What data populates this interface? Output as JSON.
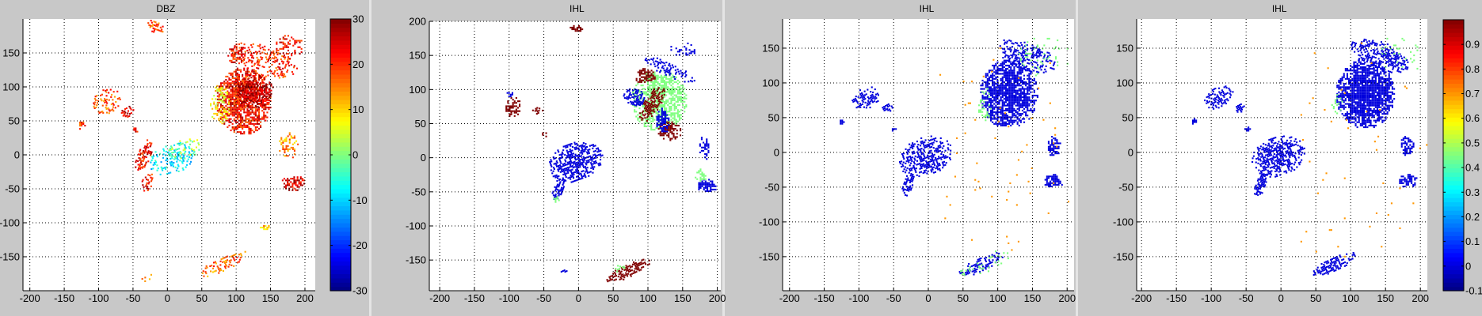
{
  "chart_data": [
    {
      "type": "heatmap",
      "title": "DBZ",
      "xlim": [
        -210,
        215
      ],
      "ylim": [
        -200,
        200
      ],
      "xticks": [
        -200,
        -150,
        -100,
        -50,
        0,
        50,
        100,
        150,
        200
      ],
      "yticks": [
        -150,
        -100,
        -50,
        0,
        50,
        100,
        150
      ],
      "grid": true,
      "colorbar": {
        "colormap": "jet",
        "range": [
          -30,
          30
        ],
        "ticks": [
          -30,
          -20,
          -10,
          0,
          10,
          20,
          30
        ],
        "placement": "right"
      },
      "value_jitter": 6,
      "regions_fields": [
        "x",
        "y",
        "rx",
        "ry",
        "value",
        "density",
        "angle"
      ],
      "regions": [
        [
          110,
          80,
          40,
          50,
          22,
          0.75,
          0
        ],
        [
          125,
          95,
          28,
          25,
          27,
          0.6,
          0
        ],
        [
          75,
          75,
          15,
          30,
          8,
          0.4,
          0
        ],
        [
          140,
          140,
          50,
          22,
          20,
          0.35,
          -20
        ],
        [
          175,
          160,
          22,
          18,
          22,
          0.35,
          0
        ],
        [
          100,
          150,
          15,
          15,
          22,
          0.4,
          0
        ],
        [
          182,
          -40,
          18,
          12,
          25,
          0.6,
          0
        ],
        [
          175,
          15,
          14,
          20,
          14,
          0.45,
          0
        ],
        [
          -90,
          80,
          22,
          18,
          18,
          0.4,
          30
        ],
        [
          -60,
          65,
          10,
          8,
          24,
          0.5,
          30
        ],
        [
          -125,
          45,
          5,
          8,
          20,
          0.5,
          0
        ],
        [
          -35,
          0,
          10,
          25,
          22,
          0.55,
          -20
        ],
        [
          -30,
          -40,
          8,
          15,
          22,
          0.5,
          -20
        ],
        [
          5,
          -5,
          35,
          22,
          -8,
          0.35,
          20
        ],
        [
          25,
          10,
          25,
          15,
          2,
          0.25,
          20
        ],
        [
          80,
          -160,
          40,
          10,
          16,
          0.45,
          25
        ],
        [
          -20,
          190,
          15,
          8,
          18,
          0.5,
          -20
        ],
        [
          -30,
          -180,
          10,
          4,
          12,
          0.4,
          25
        ],
        [
          140,
          -105,
          8,
          4,
          12,
          0.5,
          0
        ],
        [
          -48,
          37,
          4,
          4,
          24,
          0.6,
          0
        ]
      ]
    },
    {
      "type": "heatmap",
      "title": "IHL",
      "xlim": [
        -215,
        205
      ],
      "ylim": [
        -195,
        200
      ],
      "xticks": [
        -200,
        -150,
        -100,
        -50,
        0,
        50,
        100,
        150,
        200
      ],
      "yticks": [
        -150,
        -100,
        -50,
        0,
        50,
        100,
        150,
        200
      ],
      "grid": true,
      "colorbar": {
        "colormap": "jet",
        "range": [
          -0.1,
          1.0
        ]
      },
      "value_jitter": 0,
      "regions_fields": [
        "x",
        "y",
        "rx",
        "ry",
        "value",
        "density",
        "angle"
      ],
      "regions": [
        [
          -5,
          -5,
          40,
          28,
          0,
          0.6,
          20
        ],
        [
          -30,
          -45,
          8,
          18,
          0,
          0.7,
          -20
        ],
        [
          -33,
          -60,
          4,
          6,
          0.45,
          0.7,
          0
        ],
        [
          115,
          85,
          40,
          45,
          0.45,
          0.65,
          0
        ],
        [
          105,
          80,
          12,
          30,
          1,
          0.7,
          -30
        ],
        [
          130,
          40,
          18,
          14,
          1,
          0.6,
          0
        ],
        [
          80,
          90,
          18,
          12,
          0,
          0.7,
          -20
        ],
        [
          120,
          55,
          10,
          20,
          0,
          0.7,
          0
        ],
        [
          130,
          130,
          40,
          10,
          0,
          0.45,
          -25
        ],
        [
          95,
          120,
          15,
          12,
          1,
          0.6,
          0
        ],
        [
          180,
          15,
          8,
          18,
          0,
          0.6,
          0
        ],
        [
          185,
          -40,
          15,
          10,
          0,
          0.7,
          0
        ],
        [
          175,
          -25,
          8,
          10,
          0.45,
          0.5,
          0
        ],
        [
          -95,
          75,
          12,
          15,
          1,
          0.55,
          0
        ],
        [
          -100,
          95,
          6,
          4,
          0,
          0.6,
          0
        ],
        [
          -60,
          70,
          8,
          6,
          1,
          0.6,
          30
        ],
        [
          -50,
          35,
          5,
          4,
          1,
          0.7,
          0
        ],
        [
          70,
          -165,
          35,
          10,
          1,
          0.55,
          25
        ],
        [
          -5,
          190,
          10,
          6,
          1,
          0.5,
          0
        ],
        [
          60,
          -160,
          10,
          5,
          0.45,
          0.4,
          25
        ],
        [
          -20,
          -165,
          8,
          3,
          0,
          0.6,
          25
        ],
        [
          150,
          160,
          20,
          10,
          0,
          0.4,
          0
        ]
      ]
    },
    {
      "type": "heatmap",
      "title": "IHL",
      "xlim": [
        -210,
        210
      ],
      "ylim": [
        -199,
        192
      ],
      "xticks": [
        -200,
        -150,
        -100,
        -50,
        0,
        50,
        100,
        150,
        200
      ],
      "yticks": [
        -150,
        -100,
        -50,
        0,
        50,
        100,
        150
      ],
      "grid": true,
      "colorbar": {
        "colormap": "jet",
        "range": [
          -0.1,
          1.0
        ]
      },
      "value_jitter": 0,
      "regions_fields": [
        "x",
        "y",
        "rx",
        "ry",
        "value",
        "density",
        "angle"
      ],
      "regions": [
        [
          -5,
          -5,
          40,
          28,
          0,
          0.55,
          20
        ],
        [
          -30,
          -45,
          8,
          18,
          0,
          0.7,
          -20
        ],
        [
          115,
          85,
          42,
          50,
          0,
          0.8,
          0
        ],
        [
          140,
          140,
          45,
          20,
          0,
          0.45,
          -20
        ],
        [
          80,
          70,
          10,
          25,
          0.45,
          0.3,
          0
        ],
        [
          180,
          10,
          10,
          15,
          0,
          0.6,
          0
        ],
        [
          180,
          -40,
          15,
          10,
          0,
          0.7,
          0
        ],
        [
          -90,
          80,
          22,
          15,
          0,
          0.45,
          30
        ],
        [
          -60,
          65,
          8,
          6,
          0,
          0.7,
          30
        ],
        [
          -125,
          45,
          4,
          5,
          0,
          0.6,
          0
        ],
        [
          -50,
          35,
          5,
          4,
          0,
          0.7,
          0
        ],
        [
          75,
          -160,
          35,
          10,
          0,
          0.5,
          25
        ],
        [
          80,
          -160,
          40,
          13,
          0.45,
          0.12,
          25
        ],
        [
          165,
          140,
          40,
          30,
          0.45,
          0.08,
          0
        ],
        [
          100,
          0,
          110,
          180,
          0.7,
          0.005,
          0
        ]
      ]
    },
    {
      "type": "heatmap",
      "title": "IHL",
      "xlim": [
        -207,
        210
      ],
      "ylim": [
        -199,
        192
      ],
      "xticks": [
        -200,
        -150,
        -100,
        -50,
        0,
        50,
        100,
        150,
        200
      ],
      "yticks": [
        -150,
        -100,
        -50,
        0,
        50,
        100,
        150
      ],
      "grid": true,
      "colorbar": {
        "colormap": "jet",
        "range": [
          -0.1,
          1.0
        ],
        "ticks": [
          -0.1,
          0,
          0.1,
          0.2,
          0.3,
          0.4,
          0.5,
          0.6,
          0.7,
          0.8,
          0.9
        ],
        "placement": "right"
      },
      "value_jitter": 0,
      "regions_fields": [
        "x",
        "y",
        "rx",
        "ry",
        "value",
        "density",
        "angle"
      ],
      "regions": [
        [
          -5,
          -5,
          40,
          28,
          0,
          0.6,
          20
        ],
        [
          -30,
          -45,
          8,
          18,
          0,
          0.75,
          -20
        ],
        [
          120,
          85,
          42,
          50,
          0,
          0.85,
          0
        ],
        [
          140,
          140,
          45,
          20,
          0,
          0.5,
          -20
        ],
        [
          80,
          70,
          8,
          15,
          0.45,
          0.25,
          0
        ],
        [
          180,
          10,
          10,
          15,
          0,
          0.65,
          0
        ],
        [
          182,
          -40,
          15,
          10,
          0,
          0.75,
          0
        ],
        [
          -90,
          80,
          22,
          15,
          0,
          0.5,
          30
        ],
        [
          -60,
          65,
          8,
          6,
          0,
          0.75,
          30
        ],
        [
          -125,
          45,
          4,
          5,
          0,
          0.6,
          0
        ],
        [
          -50,
          35,
          5,
          4,
          0,
          0.75,
          0
        ],
        [
          75,
          -160,
          35,
          10,
          0,
          0.55,
          25
        ],
        [
          165,
          140,
          40,
          30,
          0.45,
          0.04,
          0
        ],
        [
          100,
          0,
          110,
          180,
          0.7,
          0.004,
          0
        ]
      ]
    }
  ]
}
